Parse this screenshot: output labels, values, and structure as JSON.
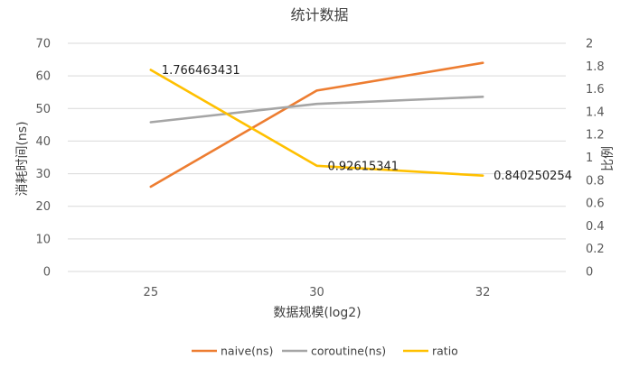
{
  "chart_data": {
    "type": "line",
    "title": "统计数据",
    "xlabel": "数据规模(log2)",
    "ylabel": "消耗时间(ns)",
    "y2label": "比例",
    "categories": [
      "25",
      "30",
      "32"
    ],
    "ylim": [
      0,
      70
    ],
    "yticks": [
      "0",
      "10",
      "20",
      "30",
      "40",
      "50",
      "60",
      "70"
    ],
    "y2lim": [
      0,
      2
    ],
    "y2ticks": [
      "0",
      "0.2",
      "0.4",
      "0.6",
      "0.8",
      "1",
      "1.2",
      "1.4",
      "1.6",
      "1.8",
      "2"
    ],
    "grid": true,
    "legend_position": "bottom",
    "series": [
      {
        "name": "naive(ns)",
        "axis": "left",
        "values": [
          26,
          55.5,
          64
        ],
        "color": "#ED7D31"
      },
      {
        "name": "coroutine(ns)",
        "axis": "left",
        "values": [
          45.8,
          51.4,
          53.6
        ],
        "color": "#A5A5A5"
      },
      {
        "name": "ratio",
        "axis": "right",
        "values": [
          1.766463431,
          0.92615341,
          0.840250254
        ],
        "color": "#FFC000",
        "data_labels": [
          "1.766463431",
          "0.92615341",
          "0.840250254"
        ]
      }
    ]
  }
}
